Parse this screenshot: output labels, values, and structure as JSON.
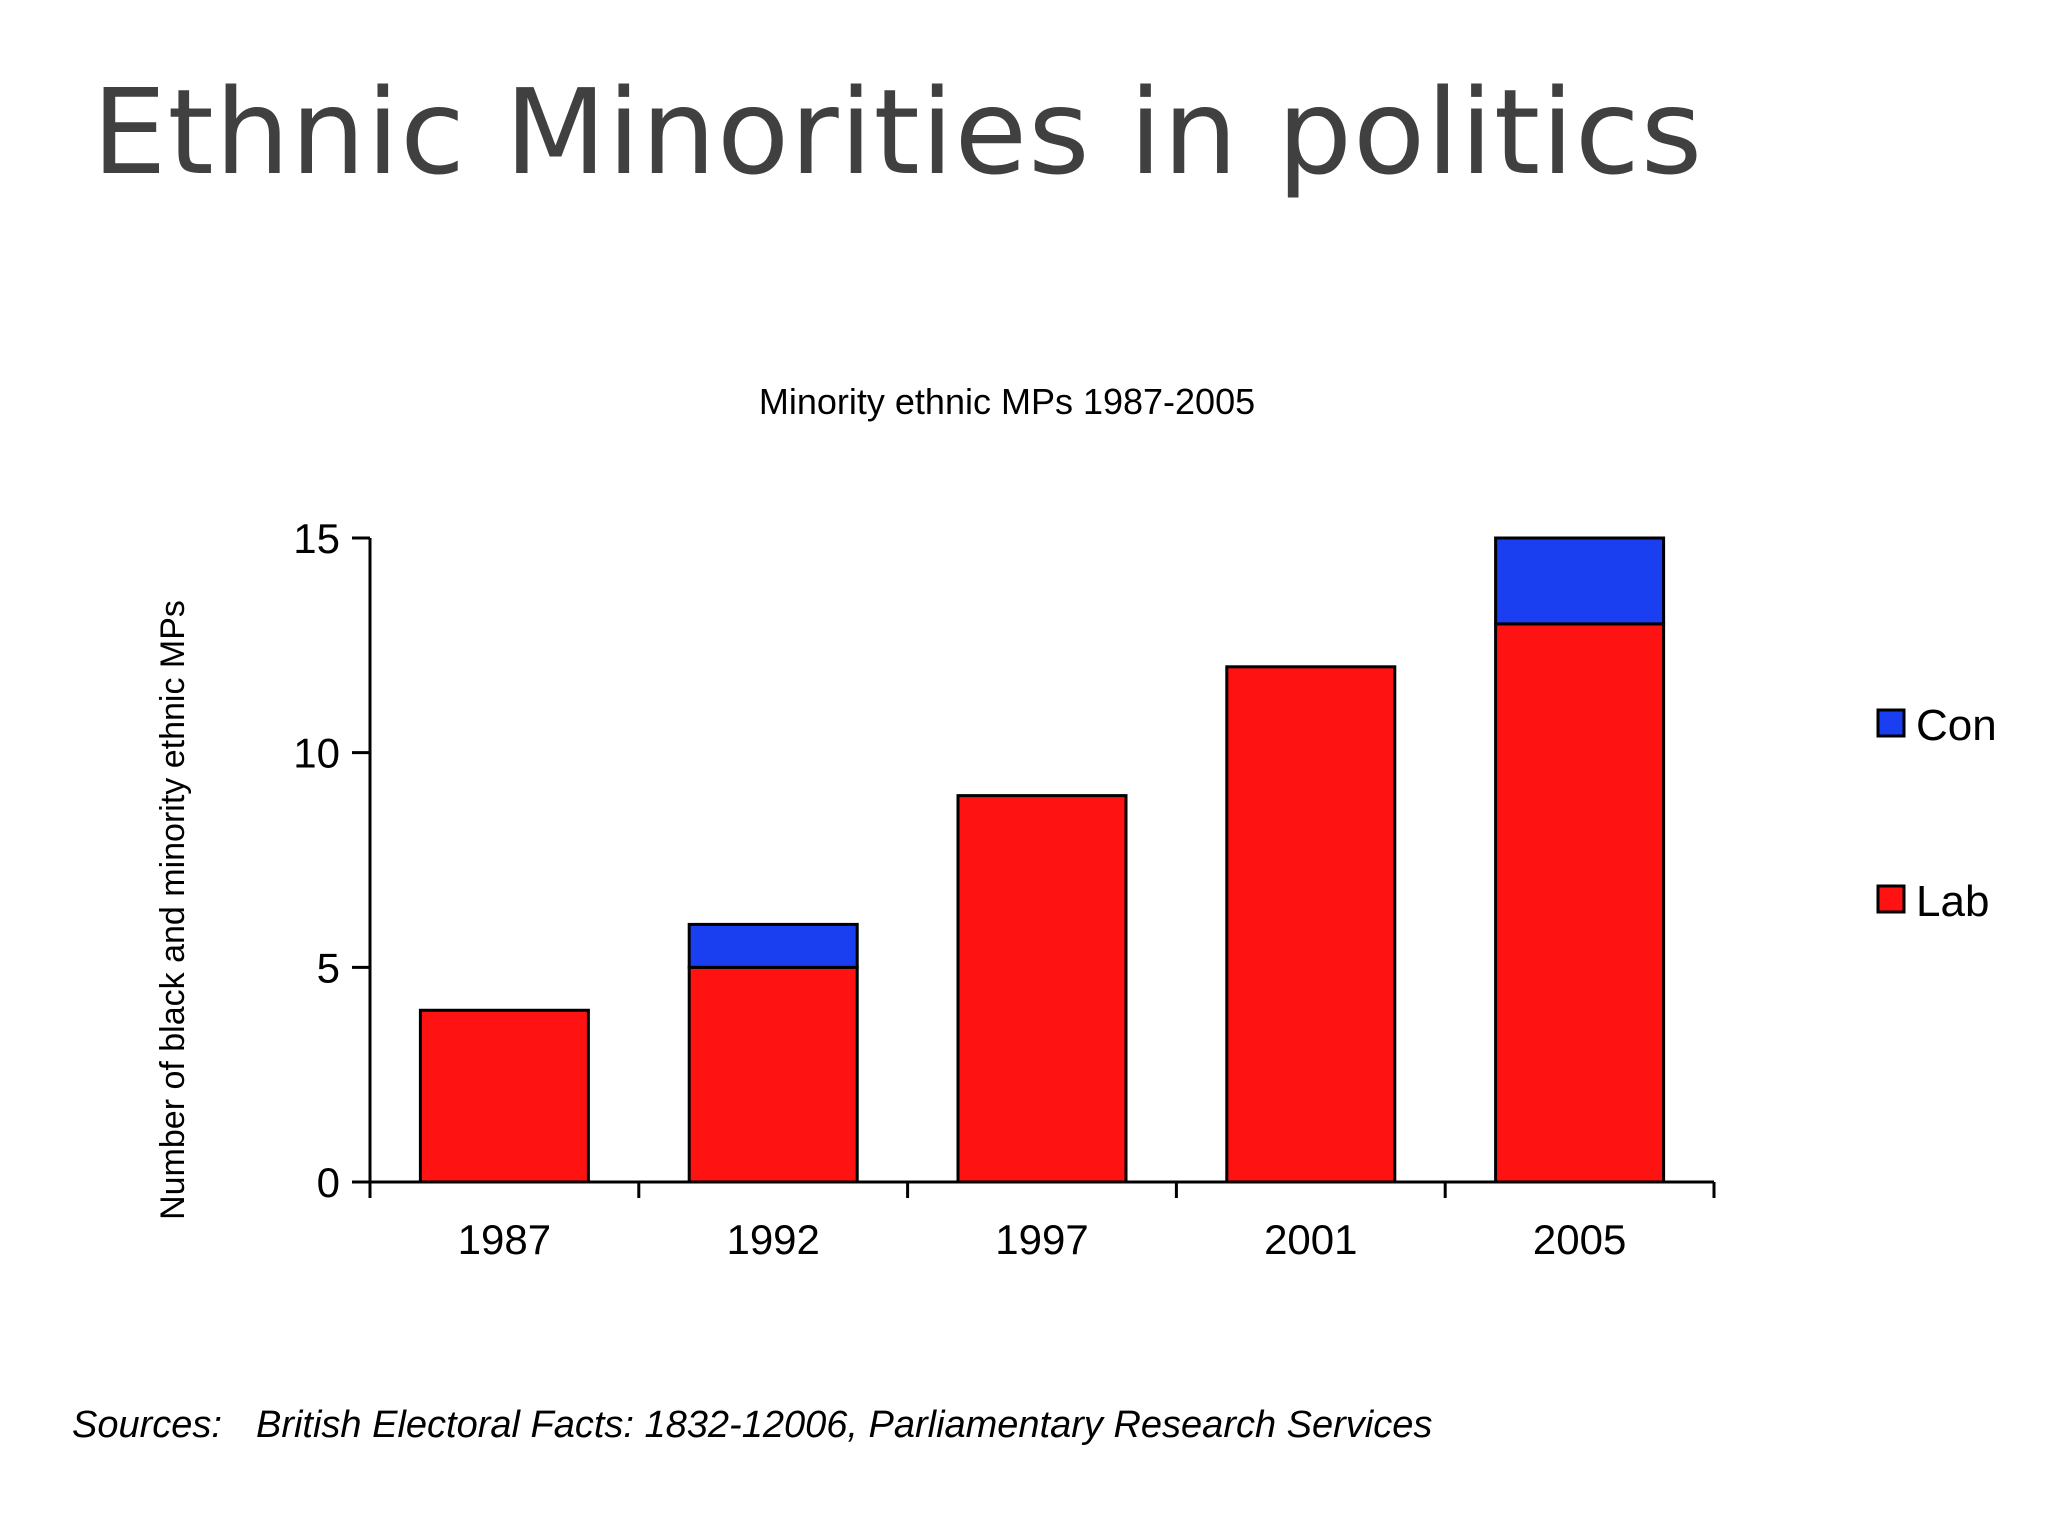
{
  "slide": {
    "title": "Ethnic Minorities in politics",
    "source_label": "Sources:",
    "source_text": "British Electoral Facts: 1832-12006, Parliamentary Research Services"
  },
  "colors": {
    "con": "#1a3ff0",
    "lab": "#ff1212",
    "axis": "#000000"
  },
  "chart_data": {
    "type": "bar",
    "stacked": true,
    "title": "Minority ethnic MPs 1987-2005",
    "xlabel": "",
    "ylabel": "Number of black and minority ethnic MPs",
    "categories": [
      "1987",
      "1992",
      "1997",
      "2001",
      "2005"
    ],
    "series": [
      {
        "name": "Lab",
        "values": [
          4,
          5,
          9,
          12,
          13
        ]
      },
      {
        "name": "Con",
        "values": [
          0,
          1,
          0,
          0,
          2
        ]
      }
    ],
    "ylim": [
      0,
      15
    ],
    "yticks": [
      0,
      5,
      10,
      15
    ],
    "grid": false,
    "legend": "right"
  }
}
